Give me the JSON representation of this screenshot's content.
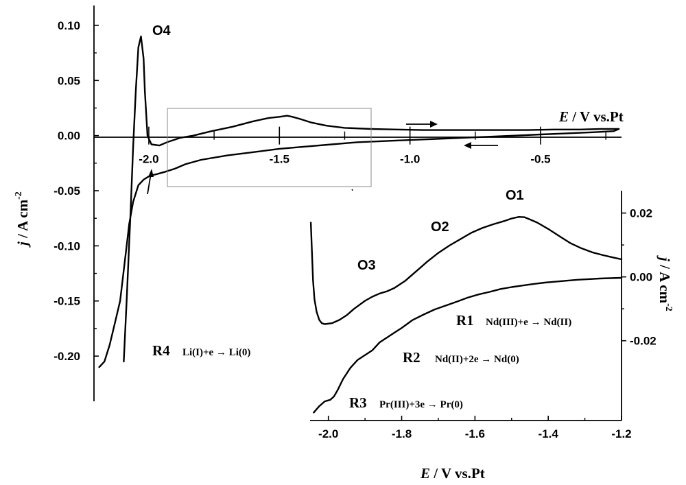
{
  "chart_data": [
    {
      "type": "line",
      "name": "main",
      "xlabel": {
        "italic": "E",
        "rest": " / V vs.Pt"
      },
      "ylabel": {
        "italic": "j",
        "rest": " / A cm",
        "sup": "-2"
      },
      "xlim": [
        -2.21,
        -0.19
      ],
      "ylim": [
        -0.241,
        0.118
      ],
      "xticks": [
        -2.0,
        -1.5,
        -1.0,
        -0.5
      ],
      "xtick_labels": [
        "-2.0",
        "-1.5",
        "-1.0",
        "-0.5"
      ],
      "yticks": [
        0.1,
        0.05,
        0.0,
        -0.05,
        -0.1,
        -0.15,
        -0.2
      ],
      "ytick_labels": [
        "0.10",
        "0.05",
        "0.00",
        "-0.05",
        "-0.10",
        "-0.15",
        "-0.20"
      ],
      "annotations": [
        "O4",
        "R4"
      ],
      "reaction_R4": "Li(I)+e → Li(0)",
      "series": [
        {
          "x": [
            -2.096,
            -2.085,
            -2.07,
            -2.06,
            -2.05,
            -2.04,
            -2.03,
            -2.02,
            -2.015,
            -2.005,
            -1.99,
            -1.96,
            -1.93,
            -1.88,
            -1.83,
            -1.76,
            -1.68,
            -1.6,
            -1.54,
            -1.5,
            -1.47,
            -1.45,
            -1.42,
            -1.38,
            -1.32,
            -1.25,
            -1.15,
            -1.05,
            -0.95,
            -0.85,
            -0.75,
            -0.65,
            -0.55,
            -0.45,
            -0.35,
            -0.27,
            -0.22,
            -0.2,
            -0.22,
            -0.3,
            -0.4,
            -0.5,
            -0.6,
            -0.7,
            -0.8,
            -0.9,
            -1.0,
            -1.1,
            -1.2,
            -1.3,
            -1.4,
            -1.5,
            -1.6,
            -1.7,
            -1.8,
            -1.86,
            -1.9,
            -1.94,
            -1.97,
            -1.99,
            -2.0,
            -2.02,
            -2.04,
            -2.06,
            -2.075,
            -2.09,
            -2.11,
            -2.13,
            -2.15,
            -2.17,
            -2.19
          ],
          "y": [
            -0.205,
            -0.15,
            -0.07,
            -0.01,
            0.04,
            0.08,
            0.09,
            0.07,
            0.04,
            0.0,
            -0.008,
            -0.009,
            -0.006,
            -0.002,
            0.0,
            0.004,
            0.008,
            0.013,
            0.016,
            0.017,
            0.018,
            0.017,
            0.015,
            0.012,
            0.009,
            0.007,
            0.006,
            0.0055,
            0.005,
            0.005,
            0.005,
            0.005,
            0.005,
            0.0055,
            0.0055,
            0.006,
            0.006,
            0.006,
            0.004,
            0.003,
            0.002,
            0.001,
            0.0,
            -0.001,
            -0.002,
            -0.003,
            -0.004,
            -0.005,
            -0.006,
            -0.008,
            -0.01,
            -0.012,
            -0.015,
            -0.018,
            -0.022,
            -0.026,
            -0.03,
            -0.033,
            -0.035,
            -0.036,
            -0.037,
            -0.04,
            -0.045,
            -0.06,
            -0.08,
            -0.11,
            -0.15,
            -0.17,
            -0.19,
            -0.205,
            -0.21
          ]
        }
      ]
    },
    {
      "type": "line",
      "name": "inset",
      "xlabel": {
        "italic": "E",
        "rest": " / V vs.Pt"
      },
      "ylabel": {
        "italic": "j",
        "rest": " / A cm",
        "sup": "-2"
      },
      "xlim": [
        -2.05,
        -1.2
      ],
      "ylim": [
        -0.045,
        0.027
      ],
      "xticks": [
        -2.0,
        -1.8,
        -1.6,
        -1.4,
        -1.2
      ],
      "xtick_labels": [
        "-2.0",
        "-1.8",
        "-1.6",
        "-1.4",
        "-1.2"
      ],
      "yticks": [
        0.02,
        0.0,
        -0.02
      ],
      "ytick_labels": [
        "0.02",
        "0.00",
        "-0.02"
      ],
      "peaks": [
        "O1",
        "O2",
        "O3"
      ],
      "reductions": [
        {
          "label": "R1",
          "text": "Nd(III)+e → Nd(II)"
        },
        {
          "label": "R2",
          "text": "Nd(II)+2e → Nd(0)"
        },
        {
          "label": "R3",
          "text": "Pr(III)+3e → Pr(0)"
        }
      ],
      "series": [
        {
          "name": "anodic",
          "x": [
            -2.048,
            -2.045,
            -2.042,
            -2.038,
            -2.032,
            -2.025,
            -2.018,
            -2.01,
            -1.99,
            -1.97,
            -1.95,
            -1.93,
            -1.9,
            -1.88,
            -1.86,
            -1.84,
            -1.82,
            -1.79,
            -1.76,
            -1.73,
            -1.7,
            -1.67,
            -1.64,
            -1.61,
            -1.58,
            -1.55,
            -1.52,
            -1.5,
            -1.48,
            -1.465,
            -1.45,
            -1.43,
            -1.4,
            -1.37,
            -1.34,
            -1.31,
            -1.28,
            -1.25,
            -1.22,
            -1.2
          ],
          "y": [
            0.017,
            0.008,
            -0.001,
            -0.007,
            -0.011,
            -0.0135,
            -0.0145,
            -0.0148,
            -0.0145,
            -0.0135,
            -0.012,
            -0.01,
            -0.0075,
            -0.0062,
            -0.0052,
            -0.0045,
            -0.0035,
            -0.0012,
            0.0018,
            0.0048,
            0.0075,
            0.0098,
            0.0118,
            0.0138,
            0.0153,
            0.0165,
            0.0175,
            0.0183,
            0.0188,
            0.0187,
            0.018,
            0.017,
            0.015,
            0.0128,
            0.0106,
            0.009,
            0.0077,
            0.0068,
            0.006,
            0.0055
          ]
        },
        {
          "name": "cathodic",
          "x": [
            -2.04,
            -2.025,
            -2.01,
            -1.995,
            -1.985,
            -1.975,
            -1.96,
            -1.94,
            -1.92,
            -1.9,
            -1.88,
            -1.86,
            -1.84,
            -1.82,
            -1.8,
            -1.77,
            -1.74,
            -1.71,
            -1.68,
            -1.65,
            -1.62,
            -1.59,
            -1.56,
            -1.53,
            -1.5,
            -1.47,
            -1.44,
            -1.41,
            -1.38,
            -1.35,
            -1.32,
            -1.29,
            -1.26,
            -1.23,
            -1.2
          ],
          "y": [
            -0.0425,
            -0.0405,
            -0.039,
            -0.0385,
            -0.0375,
            -0.0355,
            -0.032,
            -0.0285,
            -0.026,
            -0.0245,
            -0.023,
            -0.0205,
            -0.019,
            -0.0175,
            -0.016,
            -0.0135,
            -0.0118,
            -0.0102,
            -0.009,
            -0.0078,
            -0.0065,
            -0.0055,
            -0.0047,
            -0.0038,
            -0.0032,
            -0.0027,
            -0.0022,
            -0.0018,
            -0.0015,
            -0.0012,
            -0.0009,
            -0.0007,
            -0.0005,
            -0.0004,
            -0.0003
          ]
        }
      ]
    }
  ]
}
